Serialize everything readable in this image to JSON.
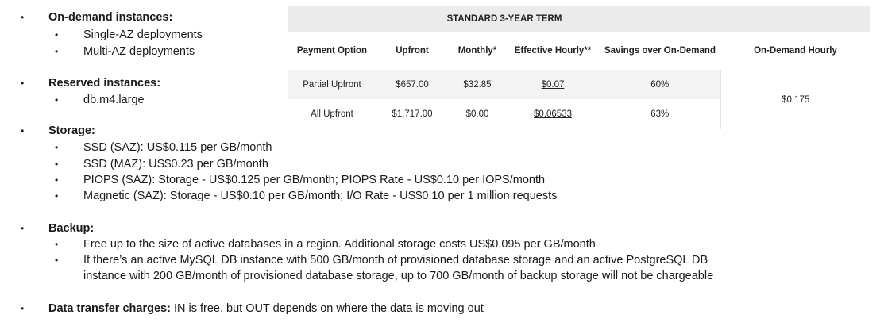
{
  "instances": {
    "heading": "On-demand instances:",
    "items": [
      "Single-AZ deployments",
      "Multi-AZ deployments"
    ]
  },
  "reserved": {
    "heading": "Reserved instances:",
    "items": [
      "db.m4.large"
    ]
  },
  "storage": {
    "heading": "Storage:",
    "items": [
      "SSD (SAZ): US$0.115  per GB/month",
      "SSD (MAZ): US$0.23  per GB/month",
      "PIOPS (SAZ): Storage - US$0.125  per GB/month; PIOPS Rate - US$0.10  per IOPS/month",
      "Magnetic (SAZ):  Storage - US$0.10  per GB/month; I/O Rate - US$0.10  per 1 million requests"
    ]
  },
  "backup": {
    "heading": "Backup:",
    "items": [
      "Free up to the size of active databases in a region. Additional storage costs US$0.095  per GB/month",
      "If there’s an active MySQL DB instance with 500 GB/month of provisioned  database storage and an active PostgreSQL DB",
      "instance with 200 GB/month of provisioned  database storage, up to 700 GB/month of backup storage will not be chargeable"
    ]
  },
  "transfer": {
    "heading": "Data transfer charges:",
    "text": " IN is free,  but OUT depends on where the data is moving  out"
  },
  "pricing_table": {
    "term": "STANDARD 3-YEAR TERM",
    "columns": [
      "Payment Option",
      "Upfront",
      "Monthly*",
      "Effective Hourly**",
      "Savings over On-Demand",
      "On-Demand Hourly"
    ],
    "rows": [
      {
        "payment": "Partial Upfront",
        "upfront": "$657.00",
        "monthly": "$32.85",
        "effective": "$0.07",
        "savings": "60%"
      },
      {
        "payment": "All Upfront",
        "upfront": "$1,717.00",
        "monthly": "$0.00",
        "effective": "$0.06533",
        "savings": "63%"
      }
    ],
    "on_demand_hourly": "$0.175"
  }
}
